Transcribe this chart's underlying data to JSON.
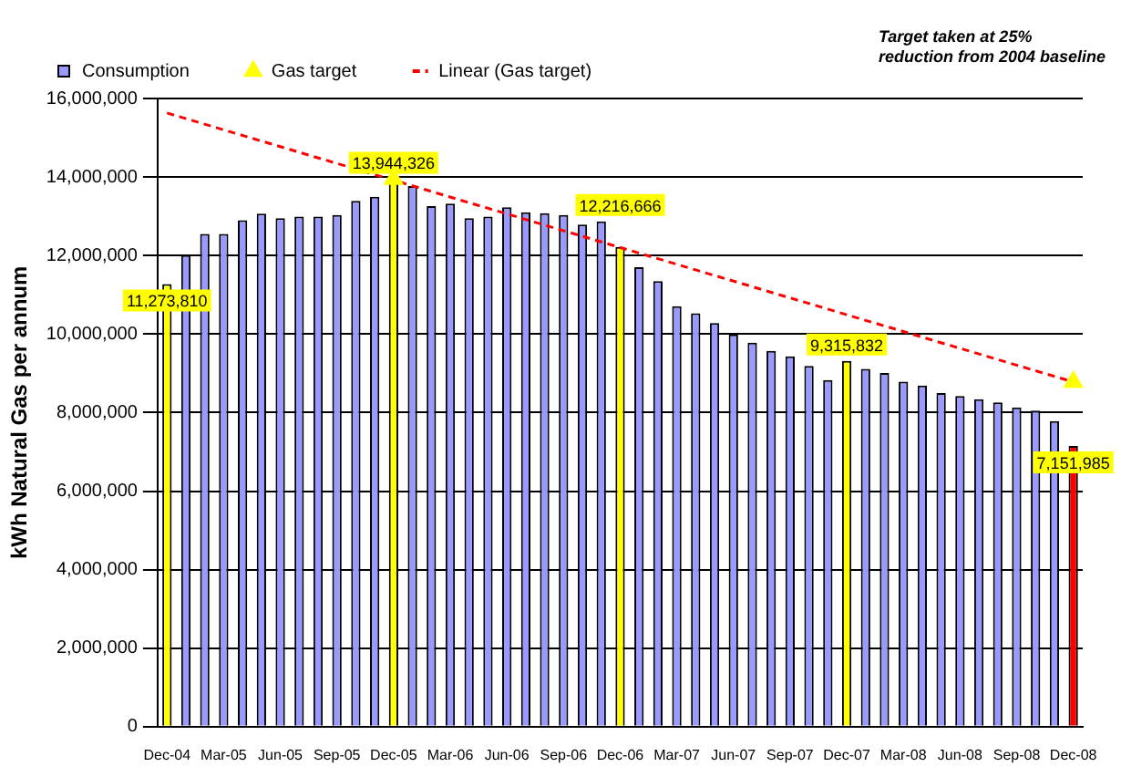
{
  "chart_data": {
    "type": "bar",
    "ylabel": "kWh Natural Gas per annum",
    "categories": [
      "Dec-04",
      null,
      null,
      "Mar-05",
      null,
      null,
      "Jun-05",
      null,
      null,
      "Sep-05",
      null,
      null,
      "Dec-05",
      null,
      null,
      "Mar-06",
      null,
      null,
      "Jun-06",
      null,
      null,
      "Sep-06",
      null,
      null,
      "Dec-06",
      null,
      null,
      "Mar-07",
      null,
      null,
      "Jun-07",
      null,
      null,
      "Sep-07",
      null,
      null,
      "Dec-07",
      null,
      null,
      "Mar-08",
      null,
      null,
      "Jun-08",
      null,
      null,
      "Sep-08",
      null,
      null,
      "Dec-08"
    ],
    "series": [
      {
        "name": "Consumption",
        "color": "#9999ff",
        "colors": [
          "#ffff00",
          "#9999ff",
          "#9999ff",
          "#9999ff",
          "#9999ff",
          "#9999ff",
          "#9999ff",
          "#9999ff",
          "#9999ff",
          "#9999ff",
          "#9999ff",
          "#9999ff",
          "#ffff00",
          "#9999ff",
          "#9999ff",
          "#9999ff",
          "#9999ff",
          "#9999ff",
          "#9999ff",
          "#9999ff",
          "#9999ff",
          "#9999ff",
          "#9999ff",
          "#9999ff",
          "#ffff00",
          "#9999ff",
          "#9999ff",
          "#9999ff",
          "#9999ff",
          "#9999ff",
          "#9999ff",
          "#9999ff",
          "#9999ff",
          "#9999ff",
          "#9999ff",
          "#9999ff",
          "#ffff00",
          "#9999ff",
          "#9999ff",
          "#9999ff",
          "#9999ff",
          "#9999ff",
          "#9999ff",
          "#9999ff",
          "#9999ff",
          "#9999ff",
          "#9999ff",
          "#9999ff",
          "#ff0000"
        ],
        "values": [
          11273810,
          12010000,
          12550000,
          12550000,
          12900000,
          13070000,
          12950000,
          12990000,
          12990000,
          13030000,
          13390000,
          13500000,
          13944326,
          13770000,
          13260000,
          13320000,
          12950000,
          12990000,
          13230000,
          13100000,
          13080000,
          13030000,
          12790000,
          12870000,
          12216666,
          11700000,
          11350000,
          10710000,
          10530000,
          10280000,
          9990000,
          9780000,
          9570000,
          9430000,
          9190000,
          8830000,
          9315832,
          9110000,
          9010000,
          8790000,
          8690000,
          8500000,
          8420000,
          8340000,
          8260000,
          8130000,
          8050000,
          7780000,
          7151985
        ],
        "value_labels": [
          "11,273,810",
          null,
          null,
          null,
          null,
          null,
          null,
          null,
          null,
          null,
          null,
          null,
          "13,944,326",
          null,
          null,
          null,
          null,
          null,
          null,
          null,
          null,
          null,
          null,
          null,
          "12,216,666",
          null,
          null,
          null,
          null,
          null,
          null,
          null,
          null,
          null,
          null,
          null,
          "9,315,832",
          null,
          null,
          null,
          null,
          null,
          null,
          null,
          null,
          null,
          null,
          null,
          "7,151,985"
        ]
      },
      {
        "name": "Gas target",
        "type": "scatter",
        "color": "#ffff00",
        "marker": "triangle",
        "x": [
          "Dec-05",
          "Dec-08"
        ],
        "values": [
          13950000,
          8780000
        ]
      },
      {
        "name": "Linear (Gas target)",
        "type": "line",
        "color": "#ff0000",
        "line_style": "dashed",
        "marker": "none",
        "x": [
          "Dec-04",
          "Dec-08"
        ],
        "values": [
          15630000,
          8780000
        ]
      }
    ],
    "ylim": [
      0,
      16000000
    ],
    "yticks": [
      {
        "value": 0,
        "label": "0"
      },
      {
        "value": 2000000,
        "label": "2,000,000"
      },
      {
        "value": 4000000,
        "label": "4,000,000"
      },
      {
        "value": 6000000,
        "label": "6,000,000"
      },
      {
        "value": 8000000,
        "label": "8,000,000"
      },
      {
        "value": 10000000,
        "label": "10,000,000"
      },
      {
        "value": 12000000,
        "label": "12,000,000"
      },
      {
        "value": 14000000,
        "label": "14,000,000"
      },
      {
        "value": 16000000,
        "label": "16,000,000"
      }
    ],
    "grid": "y",
    "legend": "top",
    "annotations": [
      "Target taken at 25% reduction from 2004 baseline"
    ]
  }
}
